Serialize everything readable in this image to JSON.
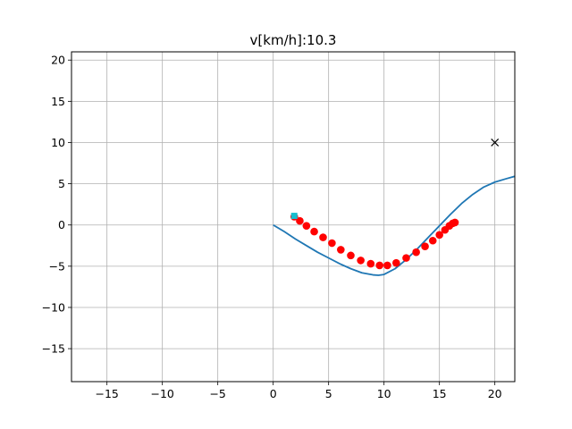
{
  "chart_data": {
    "type": "line",
    "title": "v[km/h]:10.3",
    "xlabel": "",
    "ylabel": "",
    "xlim": [
      -18.2,
      21.8
    ],
    "ylim": [
      -19.0,
      21.0
    ],
    "xticks": [
      -15,
      -10,
      -5,
      0,
      5,
      10,
      15,
      20
    ],
    "yticks": [
      -15,
      -10,
      -5,
      0,
      5,
      10,
      15,
      20
    ],
    "grid": true,
    "series": [
      {
        "kind": "line",
        "color": "#1f77b4",
        "x": [
          0,
          1,
          2,
          3,
          4,
          5,
          6,
          7,
          8,
          9,
          9.5,
          10,
          11,
          12,
          13,
          14,
          15,
          16,
          17,
          18,
          19,
          20,
          21,
          21.8
        ],
        "y": [
          0,
          -0.8,
          -1.7,
          -2.5,
          -3.3,
          -4.0,
          -4.7,
          -5.3,
          -5.8,
          -6.05,
          -6.1,
          -6.0,
          -5.3,
          -4.2,
          -2.9,
          -1.5,
          -0.1,
          1.3,
          2.6,
          3.7,
          4.6,
          5.2,
          5.6,
          5.9
        ]
      },
      {
        "kind": "points",
        "color": "#ff0000",
        "marker": "circle",
        "x": [
          1.9,
          2.4,
          3.0,
          3.7,
          4.5,
          5.3,
          6.1,
          7.0,
          7.9,
          8.8,
          9.6,
          10.3,
          11.1,
          12.0,
          12.9,
          13.7,
          14.4,
          15.0,
          15.5,
          15.9,
          16.2,
          16.4
        ],
        "y": [
          1.0,
          0.5,
          -0.1,
          -0.8,
          -1.5,
          -2.2,
          -3.0,
          -3.7,
          -4.3,
          -4.7,
          -4.9,
          -4.9,
          -4.6,
          -4.0,
          -3.3,
          -2.6,
          -1.9,
          -1.2,
          -0.6,
          -0.1,
          0.2,
          0.3
        ]
      },
      {
        "kind": "points",
        "color": "#17becf",
        "marker": "square",
        "x": [
          1.9
        ],
        "y": [
          1.1
        ]
      },
      {
        "kind": "points",
        "color": "#000000",
        "marker": "x",
        "x": [
          20
        ],
        "y": [
          10
        ]
      }
    ]
  }
}
